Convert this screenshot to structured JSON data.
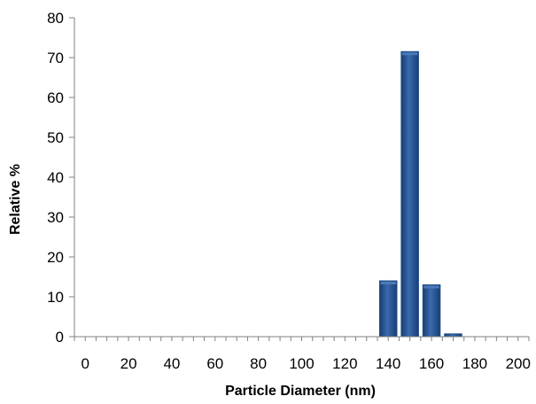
{
  "chart_data": {
    "type": "bar",
    "xlabel": "Particle Diameter (nm)",
    "ylabel": "Relative %",
    "xlim": [
      -5,
      205
    ],
    "ylim": [
      0,
      80
    ],
    "x_ticks": [
      0,
      20,
      40,
      60,
      80,
      100,
      120,
      140,
      160,
      180,
      200
    ],
    "y_ticks": [
      0,
      10,
      20,
      30,
      40,
      50,
      60,
      70,
      80
    ],
    "bar_width": 8,
    "x": [
      140,
      150,
      160,
      170
    ],
    "values": [
      14,
      71.5,
      13,
      0.7
    ],
    "grid": false,
    "legend": "none",
    "bar_color": "#1F4E8C",
    "bar_highlight": "#4A79B8"
  }
}
